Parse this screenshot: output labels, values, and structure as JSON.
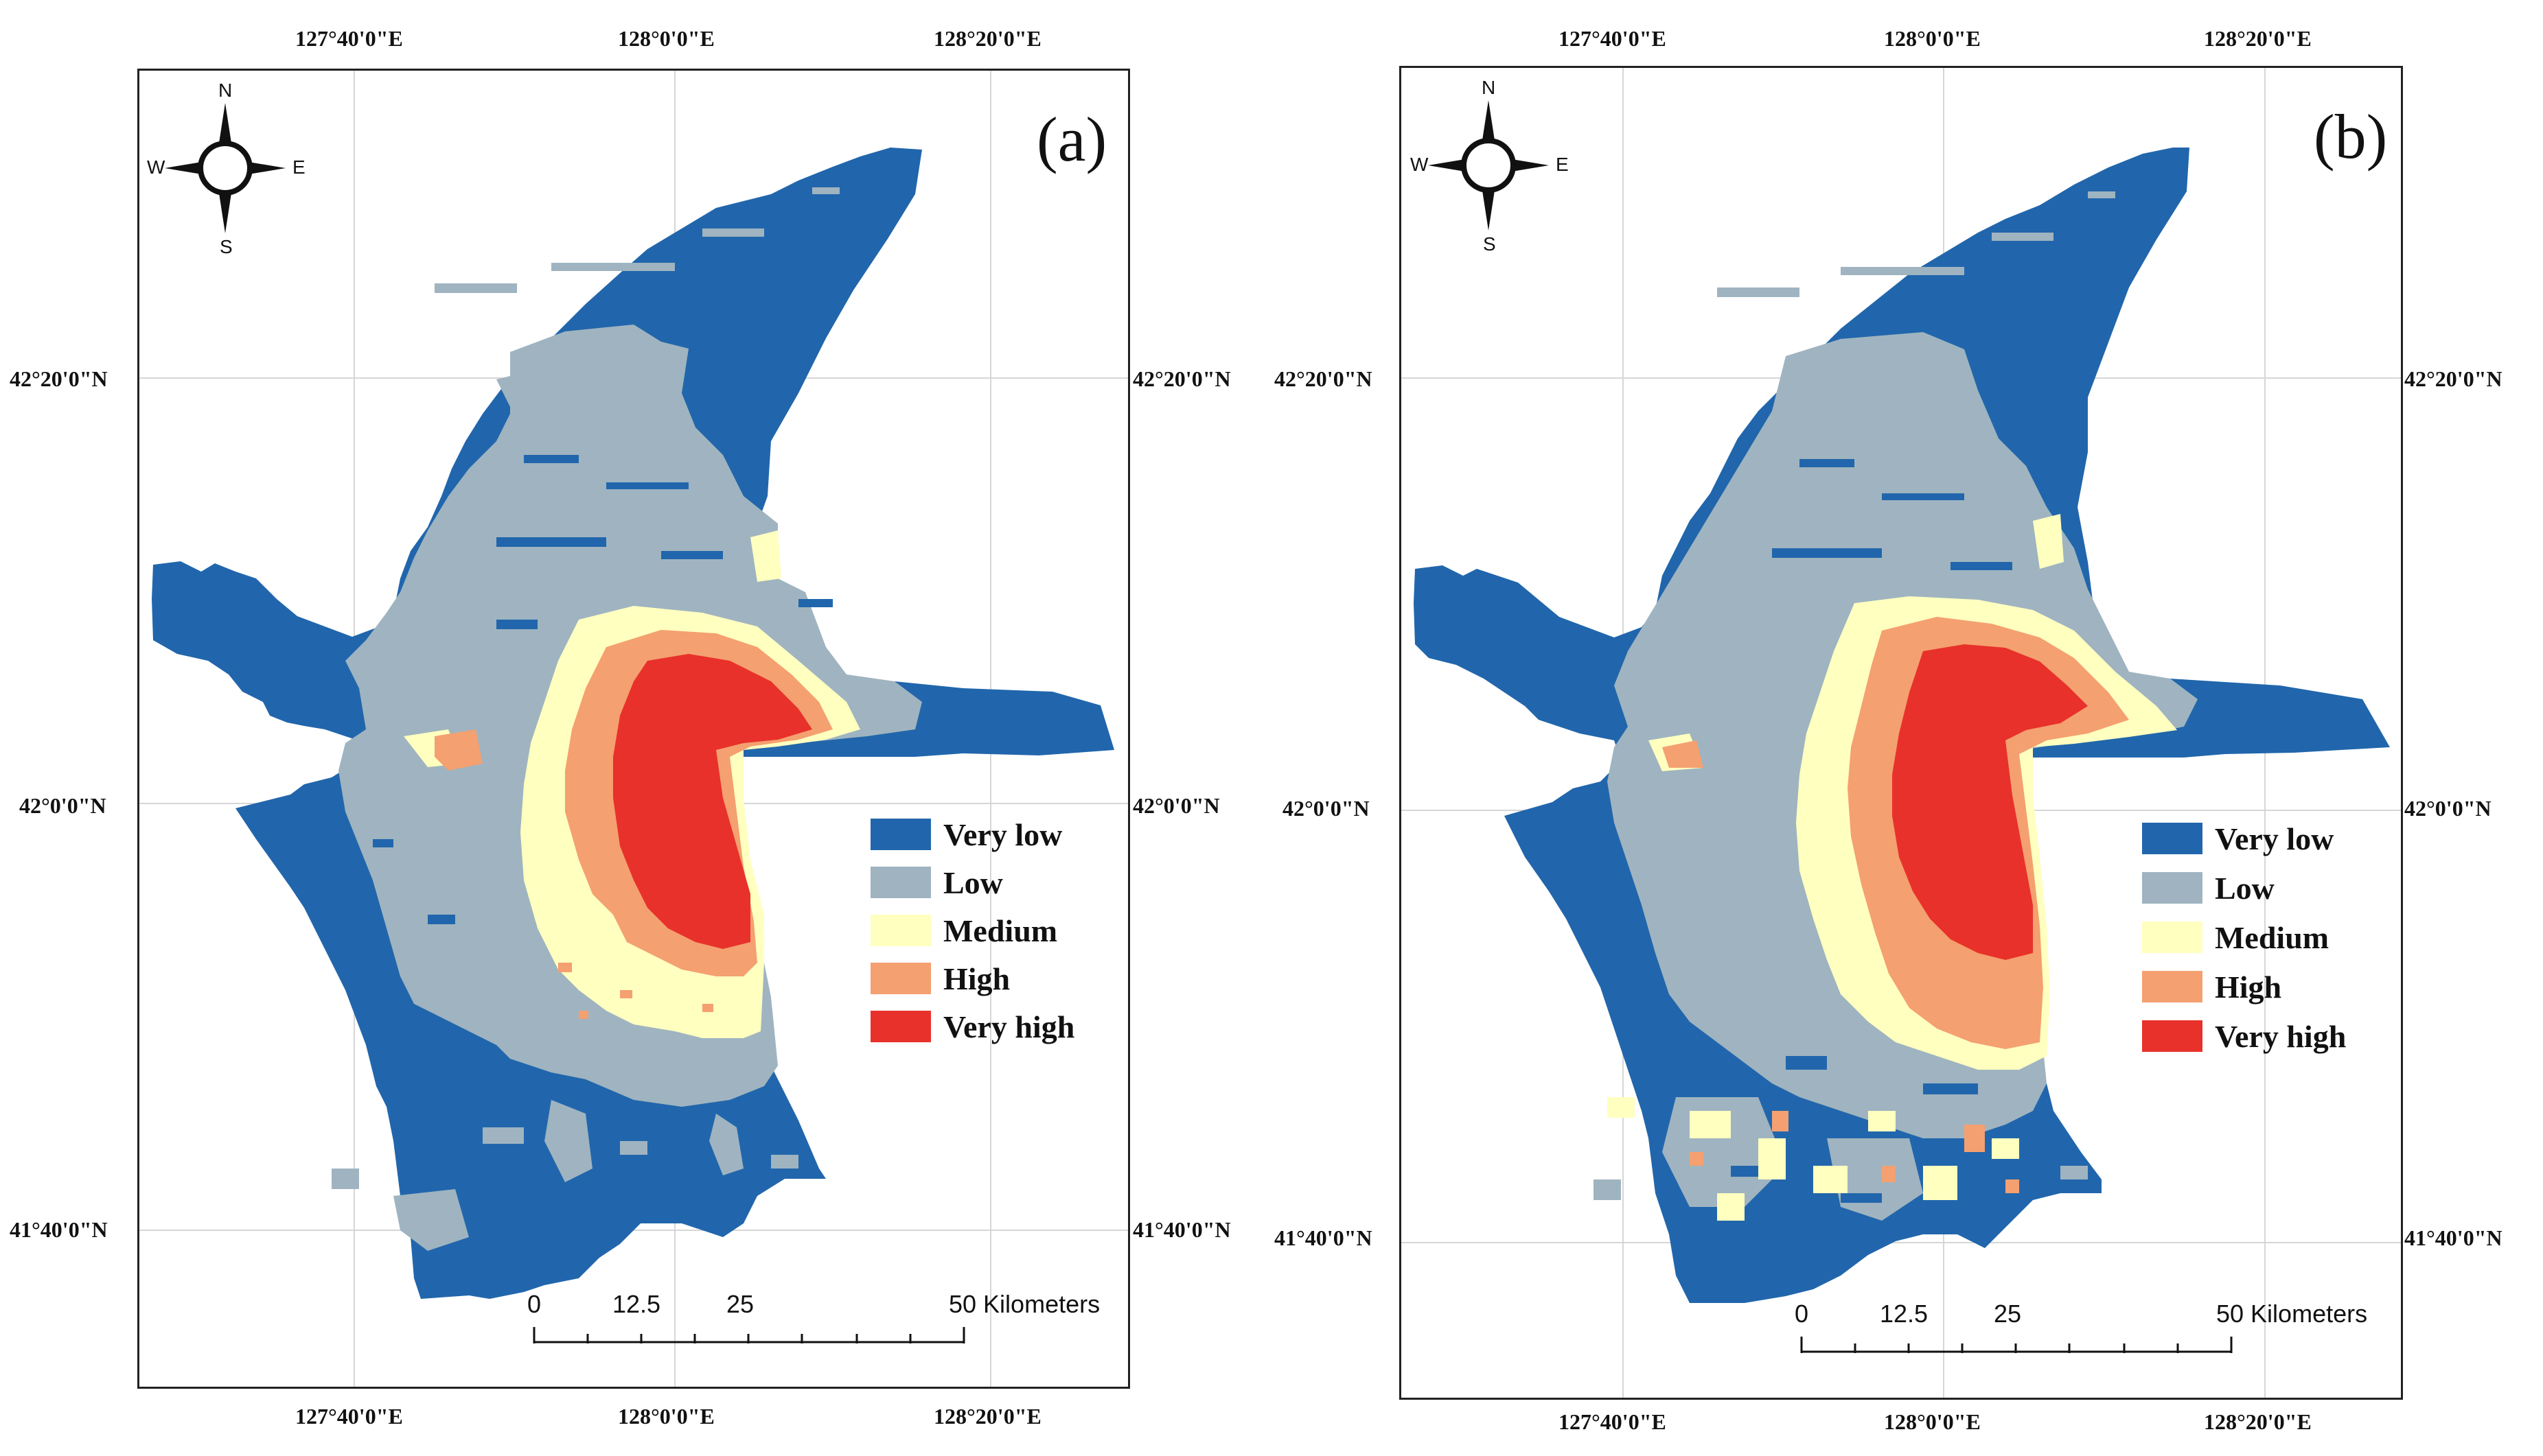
{
  "panels": [
    {
      "label": "(a)",
      "top_ticks": [
        "127°40'0\"E",
        "128°0'0\"E",
        "128°20'0\"E"
      ],
      "bottom_ticks": [
        "127°40'0\"E",
        "128°0'0\"E",
        "128°20'0\"E"
      ],
      "left_ticks": [
        "42°20'0\"N",
        "42°0'0\"N",
        "41°40'0\"N"
      ],
      "right_ticks": [
        "42°20'0\"N",
        "42°0'0\"N",
        "41°40'0\"N"
      ],
      "compass": {
        "n": "N",
        "s": "S",
        "e": "E",
        "w": "W"
      },
      "legend": [
        "Very low",
        "Low",
        "Medium",
        "High",
        "Very high"
      ],
      "scale": {
        "t0": "0",
        "t1": "12.5",
        "t2": "25",
        "t3": "50 Kilometers"
      }
    },
    {
      "label": "(b)",
      "top_ticks": [
        "127°40'0\"E",
        "128°0'0\"E",
        "128°20'0\"E"
      ],
      "bottom_ticks": [
        "127°40'0\"E",
        "128°0'0\"E",
        "128°20'0\"E"
      ],
      "left_ticks": [
        "42°20'0\"N",
        "42°0'0\"N",
        "41°40'0\"N"
      ],
      "right_ticks": [
        "42°20'0\"N",
        "42°0'0\"N",
        "41°40'0\"N"
      ],
      "compass": {
        "n": "N",
        "s": "S",
        "e": "E",
        "w": "W"
      },
      "legend": [
        "Very low",
        "Low",
        "Medium",
        "High",
        "Very high"
      ],
      "scale": {
        "t0": "0",
        "t1": "12.5",
        "t2": "25",
        "t3": "50 Kilometers"
      }
    }
  ],
  "legend_colors": {
    "very_low": "#2166ac",
    "low": "#9fb4c0",
    "medium": "#ffffc0",
    "high": "#f4a070",
    "very_high": "#e8312a"
  }
}
